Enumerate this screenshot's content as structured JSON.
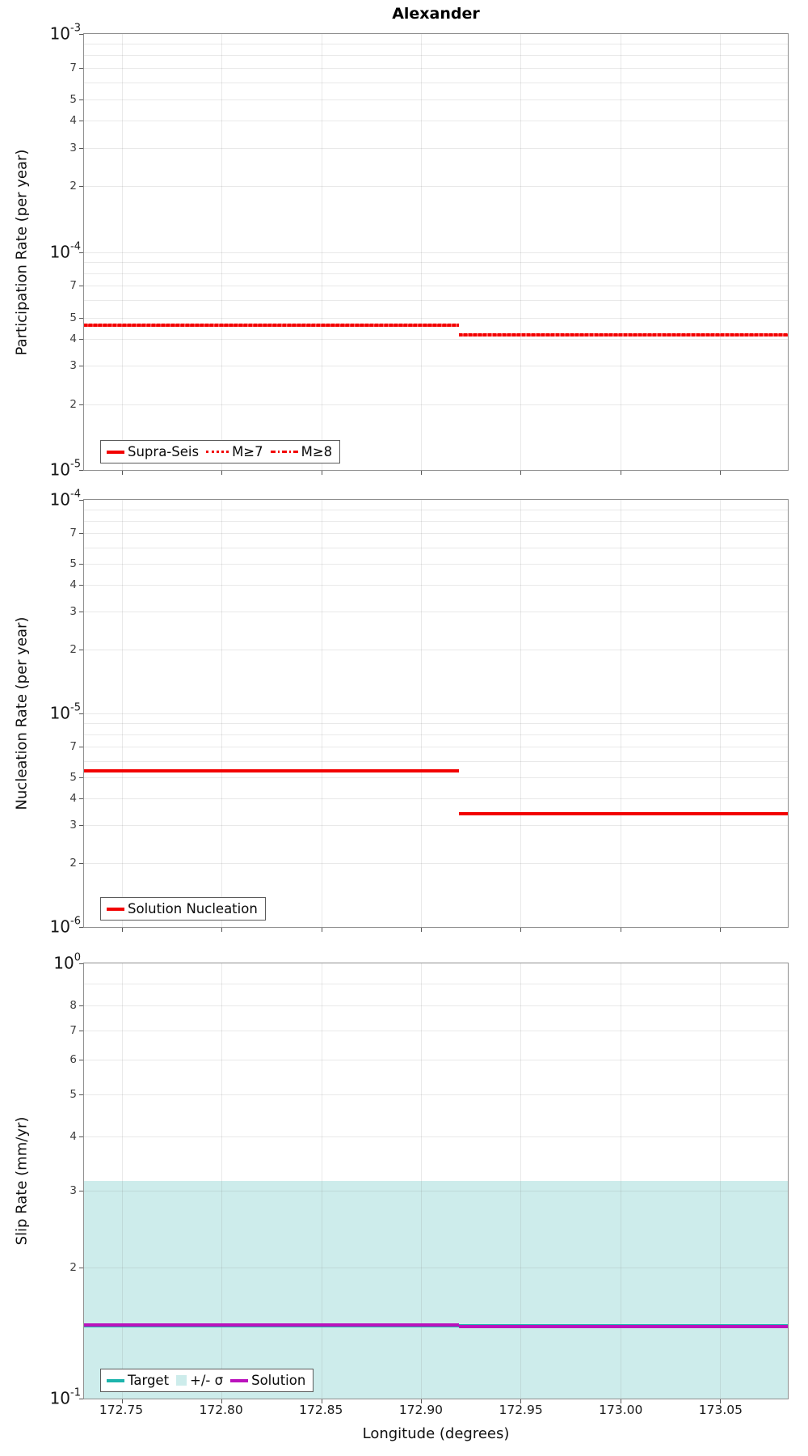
{
  "page": {
    "title": "Alexander",
    "xlabel": "Longitude (degrees)"
  },
  "colors": {
    "red": "#f20000",
    "teal": "#1db4ac",
    "sigma_band": "#cdeceb",
    "solution_purple": "#ba12bc",
    "grid": "#ebebeb",
    "axis_border": "#8f8f8f",
    "tick_mark": "#555555",
    "minor_tick_label": "#3d3d3d"
  },
  "xaxis": {
    "label": "Longitude (degrees)",
    "min": 172.731,
    "max": 173.084,
    "tick_values": [
      172.75,
      172.8,
      172.85,
      172.9,
      172.95,
      173.0,
      173.05
    ],
    "tick_labels": [
      "172.75",
      "172.80",
      "172.85",
      "172.90",
      "172.95",
      "173.00",
      "173.05"
    ]
  },
  "chart_data": [
    {
      "type": "line",
      "title": "Alexander",
      "ylabel": "Participation Rate (per year)",
      "yscale": "log",
      "ylim": [
        1e-05,
        0.001
      ],
      "xlim": [
        172.731,
        173.084
      ],
      "decade_exponents": [
        -3,
        -4,
        -5
      ],
      "labeled_minors": [
        7,
        5,
        4,
        3,
        2
      ],
      "grid": true,
      "legend_position": "lower-left",
      "series": [
        {
          "name": "Supra-Seis",
          "style": "solid",
          "color": "#f20000",
          "width": 4,
          "segments": [
            {
              "x": [
                172.731,
                172.919
              ],
              "y": 4.6e-05
            },
            {
              "x": [
                172.919,
                173.084
              ],
              "y": 4.15e-05
            }
          ]
        },
        {
          "name": "M≥7",
          "style": "dotted",
          "color": "#f20000",
          "width": 3,
          "segments": [
            {
              "x": [
                172.731,
                172.919
              ],
              "y": 4.6e-05
            },
            {
              "x": [
                172.919,
                173.084
              ],
              "y": 4.15e-05
            }
          ]
        },
        {
          "name": "M≥8",
          "style": "dashdot",
          "color": "#f20000",
          "width": 3,
          "segments": [
            {
              "x": [
                172.731,
                172.919
              ],
              "y": 4.6e-05
            },
            {
              "x": [
                172.919,
                173.084
              ],
              "y": 4.15e-05
            }
          ]
        }
      ]
    },
    {
      "type": "line",
      "ylabel": "Nucleation Rate (per year)",
      "yscale": "log",
      "ylim": [
        1e-06,
        0.0001
      ],
      "xlim": [
        172.731,
        173.084
      ],
      "decade_exponents": [
        -4,
        -5,
        -6
      ],
      "labeled_minors": [
        7,
        5,
        4,
        3,
        2
      ],
      "grid": true,
      "legend_position": "lower-left",
      "series": [
        {
          "name": "Solution Nucleation",
          "style": "solid",
          "color": "#f20000",
          "width": 4,
          "segments": [
            {
              "x": [
                172.731,
                172.919
              ],
              "y": 5.4e-06
            },
            {
              "x": [
                172.919,
                173.084
              ],
              "y": 3.4e-06
            }
          ]
        }
      ]
    },
    {
      "type": "line",
      "ylabel": "Slip Rate (mm/yr)",
      "yscale": "log",
      "ylim": [
        0.1,
        1.0
      ],
      "xlim": [
        172.731,
        173.084
      ],
      "decade_exponents": [
        0,
        -1
      ],
      "labeled_minors": [
        8,
        7,
        6,
        5,
        4,
        3,
        2
      ],
      "grid": true,
      "legend_position": "lower-left",
      "band": {
        "name": "+/- σ",
        "color": "#cdeceb",
        "x": [
          172.731,
          173.084
        ],
        "y_top": 0.316,
        "y_bottom": 0.1
      },
      "series": [
        {
          "name": "Target",
          "style": "solid",
          "color": "#1db4ac",
          "width": 4,
          "segments": [
            {
              "x": [
                172.731,
                173.084
              ],
              "y": 0.147
            }
          ]
        },
        {
          "name": "Solution",
          "style": "solid",
          "color": "#ba12bc",
          "width": 4,
          "segments": [
            {
              "x": [
                172.731,
                172.919
              ],
              "y": 0.1478
            },
            {
              "x": [
                172.919,
                173.084
              ],
              "y": 0.1462
            }
          ]
        }
      ],
      "legend_items": [
        {
          "name": "Target",
          "swatch": "solid",
          "color": "#1db4ac"
        },
        {
          "name": "+/- σ",
          "swatch": "patch",
          "color": "#cdeceb"
        },
        {
          "name": "Solution",
          "swatch": "solid",
          "color": "#ba12bc"
        }
      ]
    }
  ]
}
